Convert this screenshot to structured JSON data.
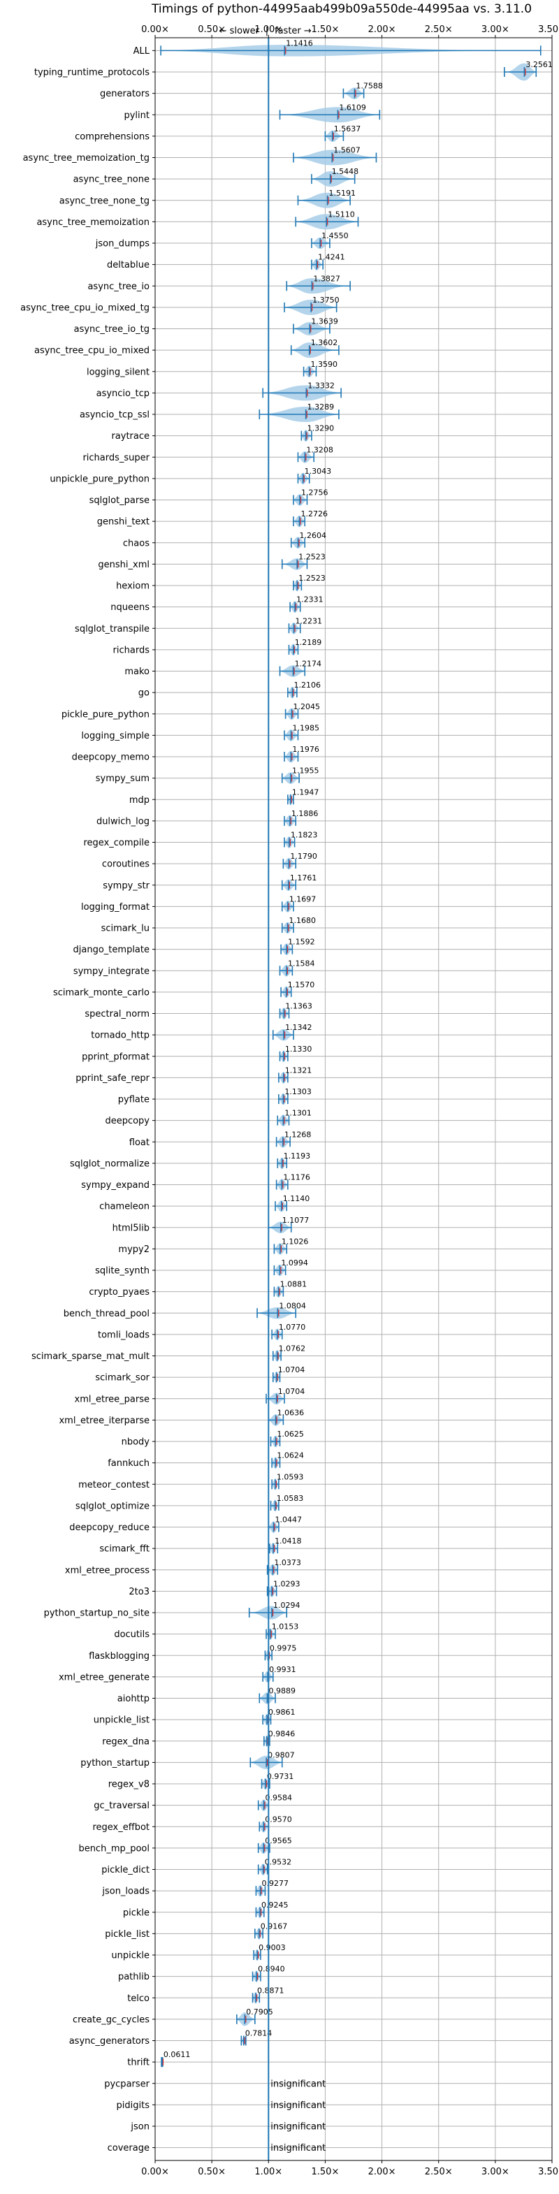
{
  "chart_data": {
    "type": "violin",
    "title": "Timings of python-44995aab499b09a550de-44995aa vs. 3.11.0",
    "annotation_slower": "← slower",
    "annotation_faster": "faster →",
    "annotation_separator": "|",
    "xlim": [
      0,
      3.5
    ],
    "xticks": [
      {
        "value": 0.0,
        "label": "0.00×"
      },
      {
        "value": 0.5,
        "label": "0.50×"
      },
      {
        "value": 1.0,
        "label": "1.00×"
      },
      {
        "value": 1.5,
        "label": "1.50×"
      },
      {
        "value": 2.0,
        "label": "2.00×"
      },
      {
        "value": 2.5,
        "label": "2.50×"
      },
      {
        "value": 3.0,
        "label": "3.00×"
      },
      {
        "value": 3.5,
        "label": "3.50×"
      }
    ],
    "reference_line": 1.0,
    "insignificant_label": "insignificant",
    "colors": {
      "violin": "#a6cce8",
      "line": "#1f77b4",
      "mean": "#d62728",
      "grid": "#b0b0b0",
      "reference": "#1f77b4"
    },
    "benchmarks": [
      {
        "name": "ALL",
        "label": "1.1416",
        "value": 1.1416,
        "lo": 0.05,
        "hi": 3.4,
        "w": 0.6,
        "ann": true
      },
      {
        "name": "typing_runtime_protocols",
        "label": "3.2561",
        "value": 3.2561,
        "lo": 3.08,
        "hi": 3.36,
        "w": 0.9,
        "ann": true
      },
      {
        "name": "generators",
        "label": "1.7588",
        "value": 1.7588,
        "lo": 1.66,
        "hi": 1.84,
        "w": 0.6,
        "ann": true
      },
      {
        "name": "pylint",
        "label": "1.6109",
        "value": 1.6109,
        "lo": 1.1,
        "hi": 1.98,
        "w": 0.8,
        "ann": true
      },
      {
        "name": "comprehensions",
        "label": "1.5637",
        "value": 1.5637,
        "lo": 1.5,
        "hi": 1.66,
        "w": 0.6,
        "ann": true
      },
      {
        "name": "async_tree_memoization_tg",
        "label": "1.5607",
        "value": 1.5607,
        "lo": 1.22,
        "hi": 1.95,
        "w": 0.8,
        "ann": true
      },
      {
        "name": "async_tree_none",
        "label": "1.5448",
        "value": 1.5448,
        "lo": 1.38,
        "hi": 1.76,
        "w": 0.8,
        "ann": true
      },
      {
        "name": "async_tree_none_tg",
        "label": "1.5191",
        "value": 1.5191,
        "lo": 1.26,
        "hi": 1.72,
        "w": 0.8,
        "ann": true
      },
      {
        "name": "async_tree_memoization",
        "label": "1.5110",
        "value": 1.511,
        "lo": 1.24,
        "hi": 1.79,
        "w": 0.8,
        "ann": true
      },
      {
        "name": "json_dumps",
        "label": "1.4550",
        "value": 1.455,
        "lo": 1.38,
        "hi": 1.54,
        "w": 0.6,
        "ann": true
      },
      {
        "name": "deltablue",
        "label": "1.4241",
        "value": 1.4241,
        "lo": 1.38,
        "hi": 1.48,
        "w": 0.6,
        "ann": true
      },
      {
        "name": "async_tree_io",
        "label": "1.3827",
        "value": 1.3827,
        "lo": 1.16,
        "hi": 1.72,
        "w": 0.8,
        "ann": true
      },
      {
        "name": "async_tree_cpu_io_mixed_tg",
        "label": "1.3750",
        "value": 1.375,
        "lo": 1.14,
        "hi": 1.6,
        "w": 0.8,
        "ann": true
      },
      {
        "name": "async_tree_io_tg",
        "label": "1.3639",
        "value": 1.3639,
        "lo": 1.22,
        "hi": 1.54,
        "w": 0.7,
        "ann": true
      },
      {
        "name": "async_tree_cpu_io_mixed",
        "label": "1.3602",
        "value": 1.3602,
        "lo": 1.2,
        "hi": 1.62,
        "w": 0.8,
        "ann": true
      },
      {
        "name": "logging_silent",
        "label": "1.3590",
        "value": 1.359,
        "lo": 1.31,
        "hi": 1.42,
        "w": 0.6,
        "ann": true
      },
      {
        "name": "asyncio_tcp",
        "label": "1.3332",
        "value": 1.3332,
        "lo": 0.95,
        "hi": 1.64,
        "w": 0.8,
        "ann": true
      },
      {
        "name": "asyncio_tcp_ssl",
        "label": "1.3289",
        "value": 1.3289,
        "lo": 0.92,
        "hi": 1.62,
        "w": 0.8,
        "ann": true
      },
      {
        "name": "raytrace",
        "label": "1.3290",
        "value": 1.329,
        "lo": 1.29,
        "hi": 1.38,
        "w": 0.6,
        "ann": true
      },
      {
        "name": "richards_super",
        "label": "1.3208",
        "value": 1.3208,
        "lo": 1.26,
        "hi": 1.4,
        "w": 0.6,
        "ann": true
      },
      {
        "name": "unpickle_pure_python",
        "label": "1.3043",
        "value": 1.3043,
        "lo": 1.26,
        "hi": 1.36,
        "w": 0.6,
        "ann": true
      },
      {
        "name": "sqlglot_parse",
        "label": "1.2756",
        "value": 1.2756,
        "lo": 1.22,
        "hi": 1.34,
        "w": 0.6,
        "ann": true
      },
      {
        "name": "genshi_text",
        "label": "1.2726",
        "value": 1.2726,
        "lo": 1.22,
        "hi": 1.32,
        "w": 0.6,
        "ann": true
      },
      {
        "name": "chaos",
        "label": "1.2604",
        "value": 1.2604,
        "lo": 1.2,
        "hi": 1.32,
        "w": 0.6,
        "ann": true
      },
      {
        "name": "genshi_xml",
        "label": "1.2523",
        "value": 1.2523,
        "lo": 1.12,
        "hi": 1.34,
        "w": 0.6,
        "ann": true
      },
      {
        "name": "hexiom",
        "label": "1.2523",
        "value": 1.2523,
        "lo": 1.22,
        "hi": 1.29,
        "w": 0.6,
        "ann": true
      },
      {
        "name": "nqueens",
        "label": "1.2331",
        "value": 1.2331,
        "lo": 1.19,
        "hi": 1.28,
        "w": 0.6,
        "ann": true
      },
      {
        "name": "sqlglot_transpile",
        "label": "1.2231",
        "value": 1.2231,
        "lo": 1.18,
        "hi": 1.28,
        "w": 0.6,
        "ann": true
      },
      {
        "name": "richards",
        "label": "1.2189",
        "value": 1.2189,
        "lo": 1.18,
        "hi": 1.26,
        "w": 0.6,
        "ann": true
      },
      {
        "name": "mako",
        "label": "1.2174",
        "value": 1.2174,
        "lo": 1.1,
        "hi": 1.32,
        "w": 0.6,
        "ann": true
      },
      {
        "name": "go",
        "label": "1.2106",
        "value": 1.2106,
        "lo": 1.17,
        "hi": 1.25,
        "w": 0.6,
        "ann": true
      },
      {
        "name": "pickle_pure_python",
        "label": "1.2045",
        "value": 1.2045,
        "lo": 1.15,
        "hi": 1.26,
        "w": 0.6,
        "ann": true
      },
      {
        "name": "logging_simple",
        "label": "1.1985",
        "value": 1.1985,
        "lo": 1.14,
        "hi": 1.26,
        "w": 0.6,
        "ann": true
      },
      {
        "name": "deepcopy_memo",
        "label": "1.1976",
        "value": 1.1976,
        "lo": 1.14,
        "hi": 1.26,
        "w": 0.6,
        "ann": true
      },
      {
        "name": "sympy_sum",
        "label": "1.1955",
        "value": 1.1955,
        "lo": 1.12,
        "hi": 1.27,
        "w": 0.6,
        "ann": true
      },
      {
        "name": "mdp",
        "label": "1.1947",
        "value": 1.1947,
        "lo": 1.17,
        "hi": 1.22,
        "w": 0.6,
        "ann": true
      },
      {
        "name": "dulwich_log",
        "label": "1.1886",
        "value": 1.1886,
        "lo": 1.14,
        "hi": 1.24,
        "w": 0.6,
        "ann": true
      },
      {
        "name": "regex_compile",
        "label": "1.1823",
        "value": 1.1823,
        "lo": 1.14,
        "hi": 1.23,
        "w": 0.6,
        "ann": true
      },
      {
        "name": "coroutines",
        "label": "1.1790",
        "value": 1.179,
        "lo": 1.13,
        "hi": 1.24,
        "w": 0.6,
        "ann": true
      },
      {
        "name": "sympy_str",
        "label": "1.1761",
        "value": 1.1761,
        "lo": 1.12,
        "hi": 1.24,
        "w": 0.6,
        "ann": true
      },
      {
        "name": "logging_format",
        "label": "1.1697",
        "value": 1.1697,
        "lo": 1.12,
        "hi": 1.22,
        "w": 0.6,
        "ann": true
      },
      {
        "name": "scimark_lu",
        "label": "1.1680",
        "value": 1.168,
        "lo": 1.12,
        "hi": 1.22,
        "w": 0.6,
        "ann": true
      },
      {
        "name": "django_template",
        "label": "1.1592",
        "value": 1.1592,
        "lo": 1.11,
        "hi": 1.21,
        "w": 0.6,
        "ann": true
      },
      {
        "name": "sympy_integrate",
        "label": "1.1584",
        "value": 1.1584,
        "lo": 1.1,
        "hi": 1.21,
        "w": 0.6,
        "ann": true
      },
      {
        "name": "scimark_monte_carlo",
        "label": "1.1570",
        "value": 1.157,
        "lo": 1.11,
        "hi": 1.2,
        "w": 0.6,
        "ann": true
      },
      {
        "name": "spectral_norm",
        "label": "1.1363",
        "value": 1.1363,
        "lo": 1.1,
        "hi": 1.18,
        "w": 0.6,
        "ann": true
      },
      {
        "name": "tornado_http",
        "label": "1.1342",
        "value": 1.1342,
        "lo": 1.04,
        "hi": 1.22,
        "w": 0.6,
        "ann": true
      },
      {
        "name": "pprint_pformat",
        "label": "1.1330",
        "value": 1.133,
        "lo": 1.1,
        "hi": 1.17,
        "w": 0.6,
        "ann": true
      },
      {
        "name": "pprint_safe_repr",
        "label": "1.1321",
        "value": 1.1321,
        "lo": 1.09,
        "hi": 1.17,
        "w": 0.6,
        "ann": true
      },
      {
        "name": "pyflate",
        "label": "1.1303",
        "value": 1.1303,
        "lo": 1.09,
        "hi": 1.17,
        "w": 0.6,
        "ann": true
      },
      {
        "name": "deepcopy",
        "label": "1.1301",
        "value": 1.1301,
        "lo": 1.08,
        "hi": 1.18,
        "w": 0.6,
        "ann": true
      },
      {
        "name": "float",
        "label": "1.1268",
        "value": 1.1268,
        "lo": 1.07,
        "hi": 1.19,
        "w": 0.6,
        "ann": true
      },
      {
        "name": "sqlglot_normalize",
        "label": "1.1193",
        "value": 1.1193,
        "lo": 1.08,
        "hi": 1.16,
        "w": 0.6,
        "ann": true
      },
      {
        "name": "sympy_expand",
        "label": "1.1176",
        "value": 1.1176,
        "lo": 1.07,
        "hi": 1.17,
        "w": 0.6,
        "ann": true
      },
      {
        "name": "chameleon",
        "label": "1.1140",
        "value": 1.114,
        "lo": 1.06,
        "hi": 1.16,
        "w": 0.6,
        "ann": true
      },
      {
        "name": "html5lib",
        "label": "1.1077",
        "value": 1.1077,
        "lo": 1.0,
        "hi": 1.2,
        "w": 0.6,
        "ann": true
      },
      {
        "name": "mypy2",
        "label": "1.1026",
        "value": 1.1026,
        "lo": 1.05,
        "hi": 1.16,
        "w": 0.6,
        "ann": true
      },
      {
        "name": "sqlite_synth",
        "label": "1.0994",
        "value": 1.0994,
        "lo": 1.05,
        "hi": 1.15,
        "w": 0.6,
        "ann": true
      },
      {
        "name": "crypto_pyaes",
        "label": "1.0881",
        "value": 1.0881,
        "lo": 1.05,
        "hi": 1.13,
        "w": 0.6,
        "ann": true
      },
      {
        "name": "bench_thread_pool",
        "label": "1.0804",
        "value": 1.0804,
        "lo": 0.9,
        "hi": 1.24,
        "w": 0.6,
        "ann": true
      },
      {
        "name": "tomli_loads",
        "label": "1.0770",
        "value": 1.077,
        "lo": 1.03,
        "hi": 1.12,
        "w": 0.6,
        "ann": true
      },
      {
        "name": "scimark_sparse_mat_mult",
        "label": "1.0762",
        "value": 1.0762,
        "lo": 1.04,
        "hi": 1.11,
        "w": 0.6,
        "ann": true
      },
      {
        "name": "scimark_sor",
        "label": "1.0704",
        "value": 1.0704,
        "lo": 1.04,
        "hi": 1.1,
        "w": 0.6,
        "ann": true
      },
      {
        "name": "xml_etree_parse",
        "label": "1.0704",
        "value": 1.0704,
        "lo": 0.98,
        "hi": 1.14,
        "w": 0.6,
        "ann": true
      },
      {
        "name": "xml_etree_iterparse",
        "label": "1.0636",
        "value": 1.0636,
        "lo": 1.0,
        "hi": 1.13,
        "w": 0.6,
        "ann": true
      },
      {
        "name": "nbody",
        "label": "1.0625",
        "value": 1.0625,
        "lo": 1.02,
        "hi": 1.1,
        "w": 0.6,
        "ann": true
      },
      {
        "name": "fannkuch",
        "label": "1.0624",
        "value": 1.0624,
        "lo": 1.03,
        "hi": 1.1,
        "w": 0.6,
        "ann": true
      },
      {
        "name": "meteor_contest",
        "label": "1.0593",
        "value": 1.0593,
        "lo": 1.03,
        "hi": 1.09,
        "w": 0.6,
        "ann": true
      },
      {
        "name": "sqlglot_optimize",
        "label": "1.0583",
        "value": 1.0583,
        "lo": 1.02,
        "hi": 1.09,
        "w": 0.6,
        "ann": true
      },
      {
        "name": "deepcopy_reduce",
        "label": "1.0447",
        "value": 1.0447,
        "lo": 1.0,
        "hi": 1.09,
        "w": 0.6,
        "ann": true
      },
      {
        "name": "scimark_fft",
        "label": "1.0418",
        "value": 1.0418,
        "lo": 1.01,
        "hi": 1.08,
        "w": 0.6,
        "ann": true
      },
      {
        "name": "xml_etree_process",
        "label": "1.0373",
        "value": 1.0373,
        "lo": 0.99,
        "hi": 1.08,
        "w": 0.6,
        "ann": true
      },
      {
        "name": "2to3",
        "label": "1.0293",
        "value": 1.0293,
        "lo": 0.99,
        "hi": 1.07,
        "w": 0.6,
        "ann": true
      },
      {
        "name": "python_startup_no_site",
        "label": "1.0294",
        "value": 1.0294,
        "lo": 0.83,
        "hi": 1.16,
        "w": 0.7,
        "ann": true
      },
      {
        "name": "docutils",
        "label": "1.0153",
        "value": 1.0153,
        "lo": 0.98,
        "hi": 1.06,
        "w": 0.6,
        "ann": true
      },
      {
        "name": "flaskblogging",
        "label": "0.9975",
        "value": 0.9975,
        "lo": 0.97,
        "hi": 1.03,
        "w": 0.6,
        "ann": true
      },
      {
        "name": "xml_etree_generate",
        "label": "0.9931",
        "value": 0.9931,
        "lo": 0.95,
        "hi": 1.04,
        "w": 0.6,
        "ann": true
      },
      {
        "name": "aiohttp",
        "label": "0.9889",
        "value": 0.9889,
        "lo": 0.92,
        "hi": 1.06,
        "w": 0.6,
        "ann": true
      },
      {
        "name": "unpickle_list",
        "label": "0.9861",
        "value": 0.9861,
        "lo": 0.95,
        "hi": 1.02,
        "w": 0.6,
        "ann": true
      },
      {
        "name": "regex_dna",
        "label": "0.9846",
        "value": 0.9846,
        "lo": 0.96,
        "hi": 1.01,
        "w": 0.6,
        "ann": true
      },
      {
        "name": "python_startup",
        "label": "0.9807",
        "value": 0.9807,
        "lo": 0.84,
        "hi": 1.12,
        "w": 0.7,
        "ann": true
      },
      {
        "name": "regex_v8",
        "label": "0.9731",
        "value": 0.9731,
        "lo": 0.94,
        "hi": 1.01,
        "w": 0.6,
        "ann": true
      },
      {
        "name": "gc_traversal",
        "label": "0.9584",
        "value": 0.9584,
        "lo": 0.91,
        "hi": 1.0,
        "w": 0.6,
        "ann": true
      },
      {
        "name": "regex_effbot",
        "label": "0.9570",
        "value": 0.957,
        "lo": 0.92,
        "hi": 1.0,
        "w": 0.6,
        "ann": true
      },
      {
        "name": "bench_mp_pool",
        "label": "0.9565",
        "value": 0.9565,
        "lo": 0.91,
        "hi": 1.01,
        "w": 0.6,
        "ann": true
      },
      {
        "name": "pickle_dict",
        "label": "0.9532",
        "value": 0.9532,
        "lo": 0.91,
        "hi": 0.99,
        "w": 0.6,
        "ann": true
      },
      {
        "name": "json_loads",
        "label": "0.9277",
        "value": 0.9277,
        "lo": 0.89,
        "hi": 0.97,
        "w": 0.6,
        "ann": true
      },
      {
        "name": "pickle",
        "label": "0.9245",
        "value": 0.9245,
        "lo": 0.89,
        "hi": 0.96,
        "w": 0.6,
        "ann": true
      },
      {
        "name": "pickle_list",
        "label": "0.9167",
        "value": 0.9167,
        "lo": 0.88,
        "hi": 0.95,
        "w": 0.6,
        "ann": true
      },
      {
        "name": "unpickle",
        "label": "0.9003",
        "value": 0.9003,
        "lo": 0.87,
        "hi": 0.93,
        "w": 0.6,
        "ann": true
      },
      {
        "name": "pathlib",
        "label": "0.8940",
        "value": 0.894,
        "lo": 0.86,
        "hi": 0.93,
        "w": 0.6,
        "ann": true
      },
      {
        "name": "telco",
        "label": "0.8871",
        "value": 0.8871,
        "lo": 0.86,
        "hi": 0.92,
        "w": 0.6,
        "ann": true
      },
      {
        "name": "create_gc_cycles",
        "label": "0.7905",
        "value": 0.7905,
        "lo": 0.72,
        "hi": 0.88,
        "w": 0.7,
        "ann": true
      },
      {
        "name": "async_generators",
        "label": "0.7814",
        "value": 0.7814,
        "lo": 0.76,
        "hi": 0.8,
        "w": 0.5,
        "ann": true
      },
      {
        "name": "thrift",
        "label": "0.0611",
        "value": 0.0611,
        "lo": 0.056,
        "hi": 0.066,
        "w": 0.5,
        "ann": true
      },
      {
        "name": "pycparser",
        "label": "",
        "value": null,
        "ann": false
      },
      {
        "name": "pidigits",
        "label": "",
        "value": null,
        "ann": false
      },
      {
        "name": "json",
        "label": "",
        "value": null,
        "ann": false
      },
      {
        "name": "coverage",
        "label": "",
        "value": null,
        "ann": false
      }
    ]
  }
}
